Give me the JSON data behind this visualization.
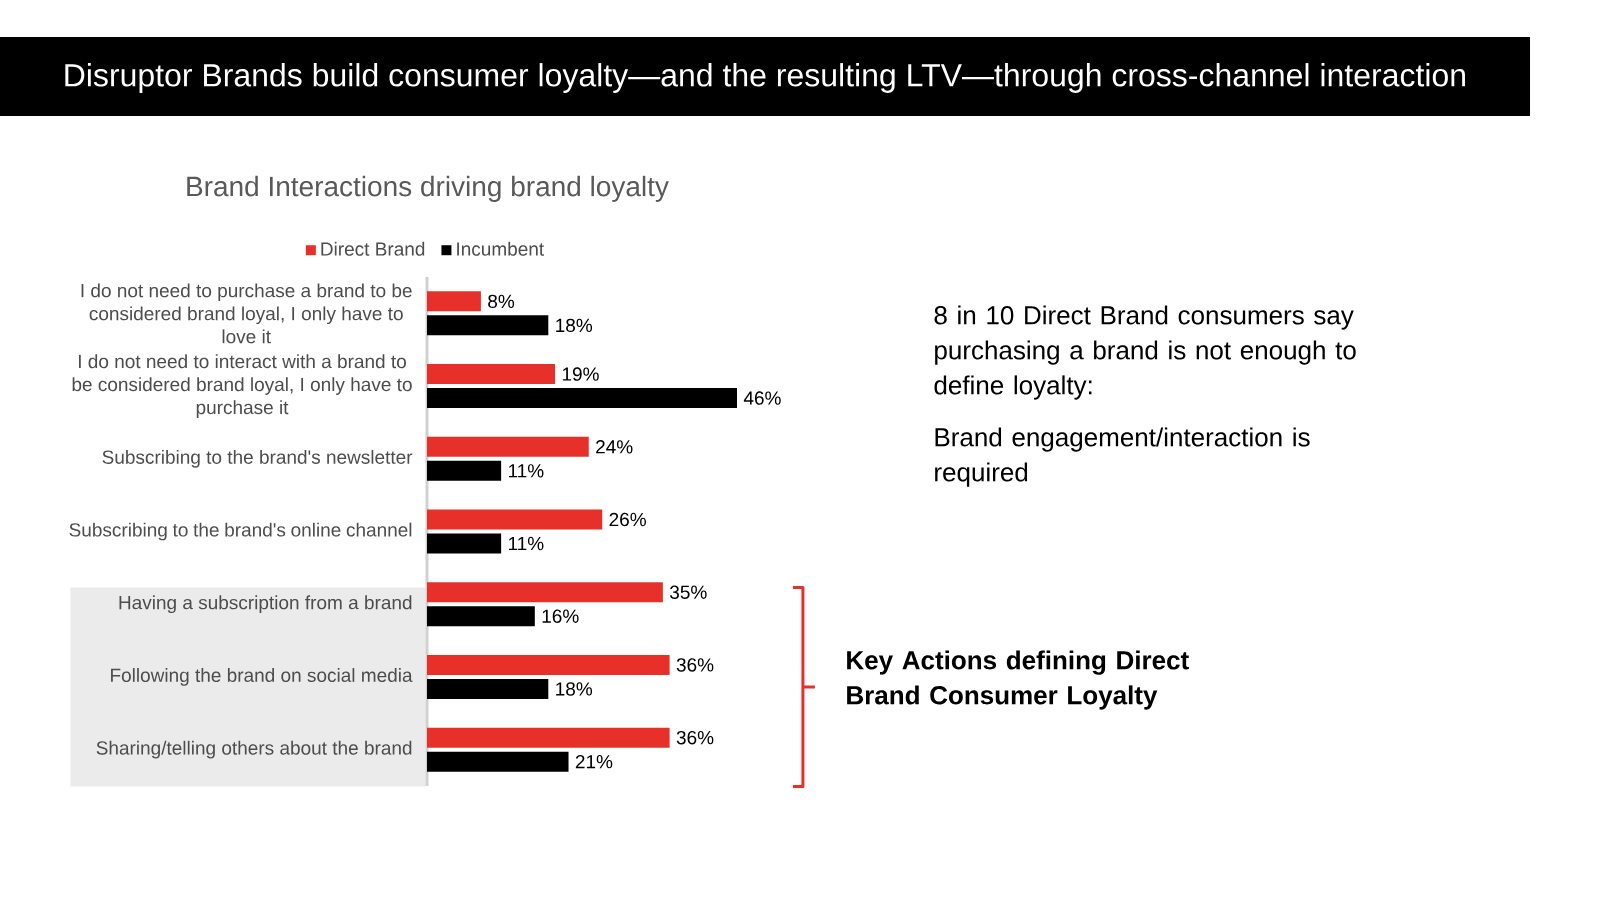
{
  "chart_data": {
    "type": "bar",
    "orientation": "horizontal",
    "title": "Disruptor Brands build consumer loyalty—and the resulting LTV—through cross-channel interaction",
    "subtitle": "Brand Interactions driving brand loyalty",
    "categories": [
      "I do not need to purchase a brand to be considered brand loyal, I only have to love it",
      "I do not need to interact with a brand to be considered brand loyal, I only have to purchase it",
      "Subscribing to the brand's newsletter",
      "Subscribing to the brand's online channel",
      "Having a subscription from a brand",
      "Following the brand on social media",
      "Sharing/telling others about the brand"
    ],
    "series": [
      {
        "name": "Direct Brand",
        "color": "#e8302a",
        "values": [
          8,
          19,
          24,
          26,
          35,
          36,
          36
        ],
        "value_labels": [
          "8%",
          "19%",
          "24%",
          "26%",
          "35%",
          "36%",
          "36%"
        ]
      },
      {
        "name": "Incumbent",
        "color": "#000000",
        "values": [
          18,
          46,
          11,
          11,
          16,
          18,
          21
        ],
        "value_labels": [
          "18%",
          "46%",
          "11%",
          "11%",
          "16%",
          "18%",
          "21%"
        ]
      }
    ],
    "legend": "top",
    "annotations": [
      "8 in 10 Direct Brand consumers say purchasing a brand is not enough to define loyalty:",
      "Brand engagement/interaction is required",
      "Key Actions defining Direct Brand Consumer Loyalty"
    ]
  }
}
